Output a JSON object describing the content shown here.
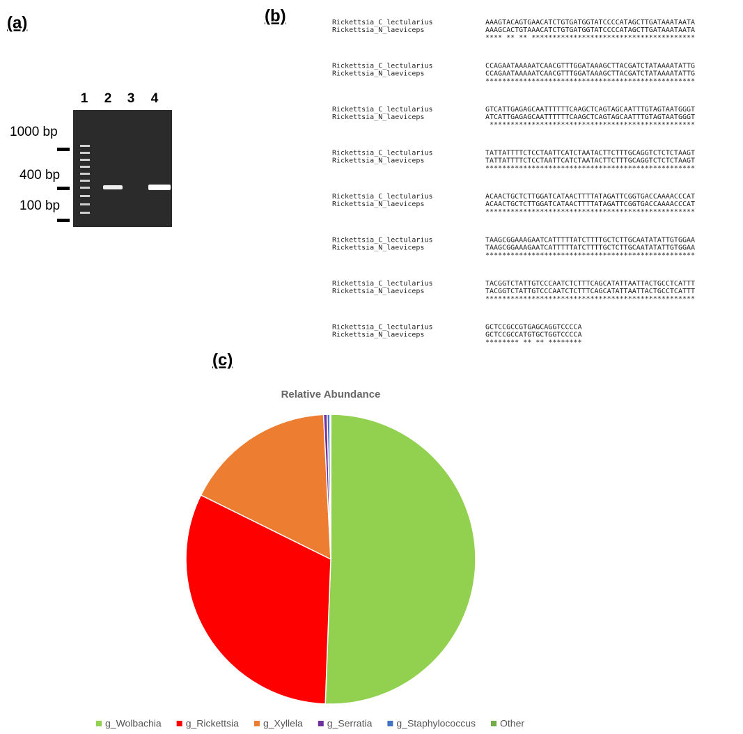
{
  "panel_a": {
    "label": "(a)",
    "lanes": [
      "1",
      "2",
      "3",
      "4"
    ],
    "markers": [
      "1000 bp",
      "400 bp",
      "100 bp"
    ]
  },
  "panel_b": {
    "label": "(b)",
    "names": [
      "Rickettsia_C_lectularius",
      "Rickettsia_N_laeviceps"
    ],
    "blocks": [
      {
        "seqs": [
          "AAAGTACAGTGAACATCTGTGATGGTATCCCCATAGCTTGATAAATAATA",
          "AAAGCACTGTAAACATCTGTGATGGTATCCCCATAGCTTGATAAATAATA"
        ],
        "consensus": "**** ** ** ***************************************"
      },
      {
        "seqs": [
          "CCAGAATAAAAATCAACGTTTGGATAAAGCTTACGATCTATAAAATATTG",
          "CCAGAATAAAAATCAACGTTTGGATAAAGCTTACGATCTATAAAATATTG"
        ],
        "consensus": "**************************************************"
      },
      {
        "seqs": [
          "GTCATTGAGAGCAATTTTTTCAAGCTCAGTAGCAATTTGTAGTAATGGGT",
          "ATCATTGAGAGCAATTTTTTCAAGCTCAGTAGCAATTTGTAGTAATGGGT"
        ],
        "consensus": " *************************************************"
      },
      {
        "seqs": [
          "TATTATTTTCTCCTAATTCATCTAATACTTCTTTGCAGGTCTCTCTAAGT",
          "TATTATTTTCTCCTAATTCATCTAATACTTCTTTGCAGGTCTCTCTAAGT"
        ],
        "consensus": "**************************************************"
      },
      {
        "seqs": [
          "ACAACTGCTCTTGGATCATAACTTTTATAGATTCGGTGACCAAAACCCAT",
          "ACAACTGCTCTTGGATCATAACTTTTATAGATTCGGTGACCAAAACCCAT"
        ],
        "consensus": "**************************************************"
      },
      {
        "seqs": [
          "TAAGCGGAAAGAATCATTTTTATCTTTTGCTCTTGCAATATATTGTGGAA",
          "TAAGCGGAAAGAATCATTTTTATCTTTTGCTCTTGCAATATATTGTGGAA"
        ],
        "consensus": "**************************************************"
      },
      {
        "seqs": [
          "TACGGTCTATTGTCCCAATCTCTTTCAGCATATTAATTACTGCCTCATTT",
          "TACGGTCTATTGTCCCAATCTCTTTCAGCATATTAATTACTGCCTCATTT"
        ],
        "consensus": "**************************************************"
      },
      {
        "seqs": [
          "GCTCCGCCGTGAGCAGGTCCCCA",
          "GCTCCGCCATGTGCTGGTCCCCA"
        ],
        "consensus": "******** ** ** ********"
      }
    ]
  },
  "panel_c": {
    "label": "(c)"
  },
  "chart_data": {
    "type": "pie",
    "title": "Relative Abundance",
    "categories": [
      "g_Wolbachia",
      "g_Rickettsia",
      "g_Xyllela",
      "g_Serratia",
      "g_Staphylococcus",
      "Other"
    ],
    "values": [
      50.6,
      31.7,
      16.9,
      0.4,
      0.3,
      0.1
    ],
    "colors": [
      "#92d050",
      "#ff0000",
      "#ed7d31",
      "#7030a0",
      "#4472c4",
      "#70ad47"
    ]
  }
}
